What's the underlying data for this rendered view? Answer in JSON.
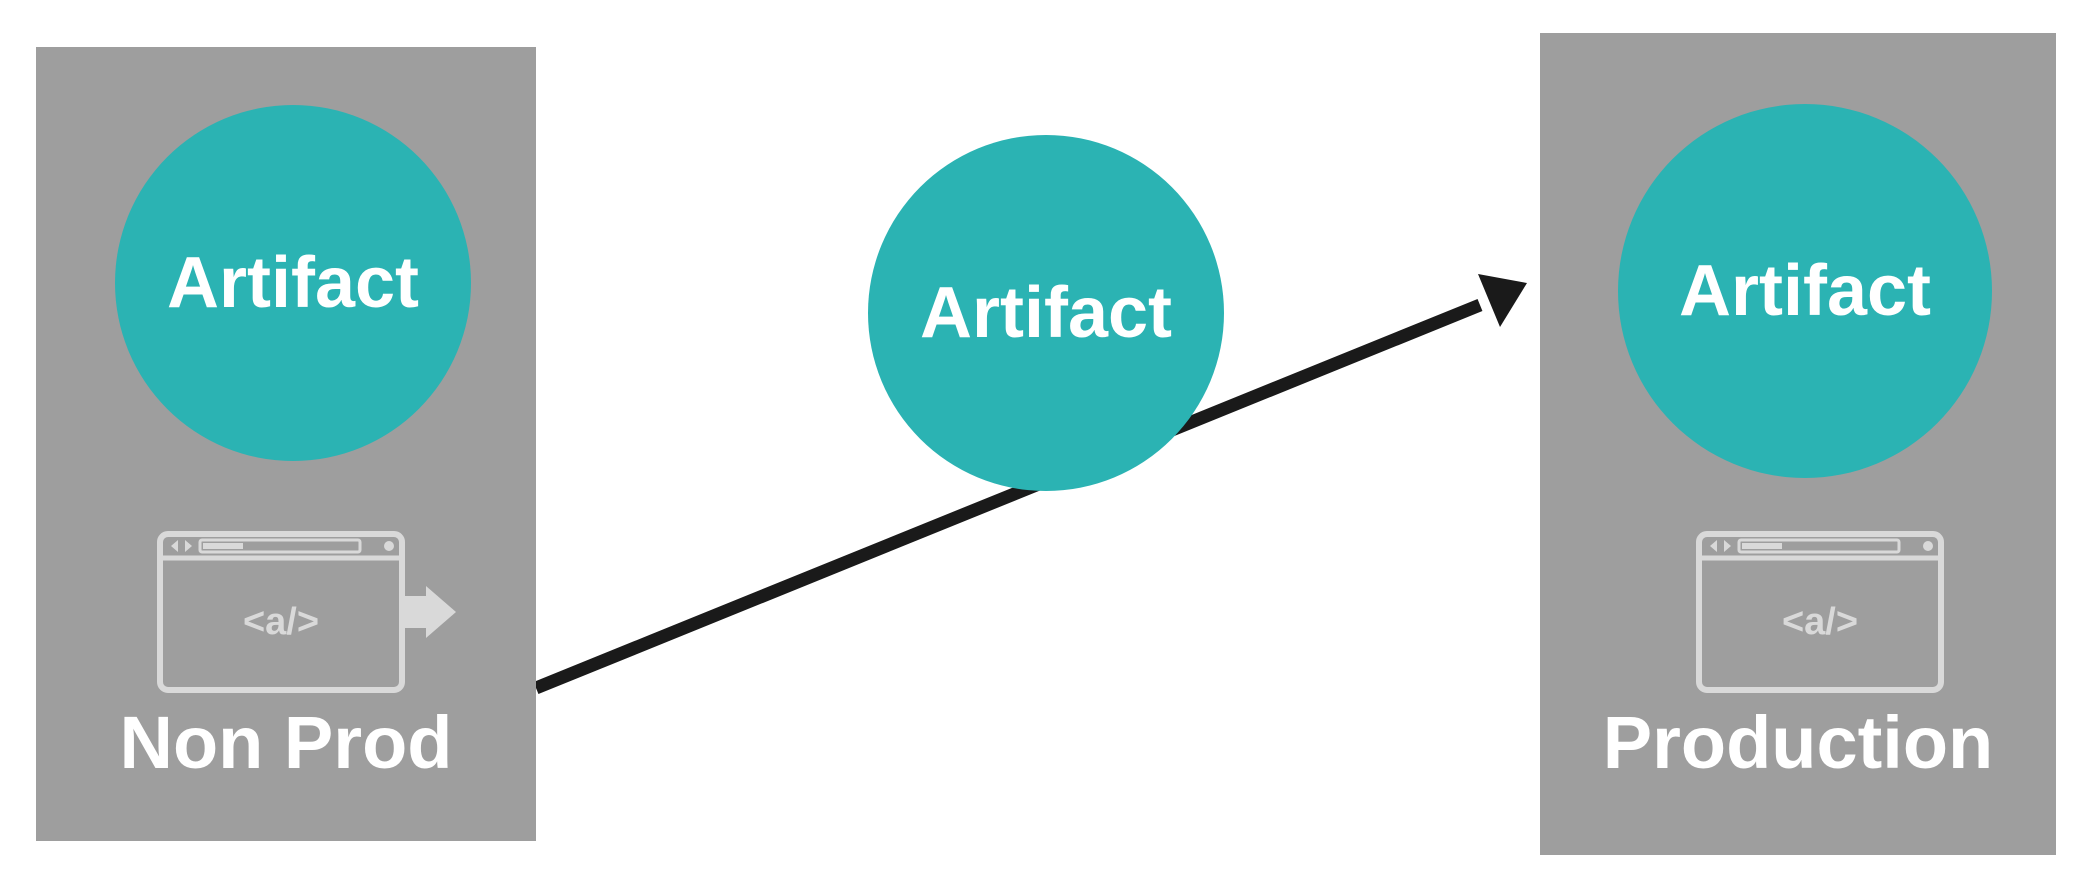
{
  "diagram": {
    "left": {
      "artifact": "Artifact",
      "code_glyph": "<a/>",
      "label": "Non Prod"
    },
    "middle": {
      "artifact": "Artifact"
    },
    "right": {
      "artifact": "Artifact",
      "code_glyph": "<a/>",
      "label": "Production"
    }
  },
  "colors": {
    "panel": "#9e9e9e",
    "artifact": "#2bb3b3",
    "arrow": "#1a1a1a",
    "icon": "#d9d9d9",
    "text": "#ffffff"
  },
  "icons": [
    "browser-window-icon",
    "export-arrow-icon",
    "promotion-arrow-icon"
  ]
}
